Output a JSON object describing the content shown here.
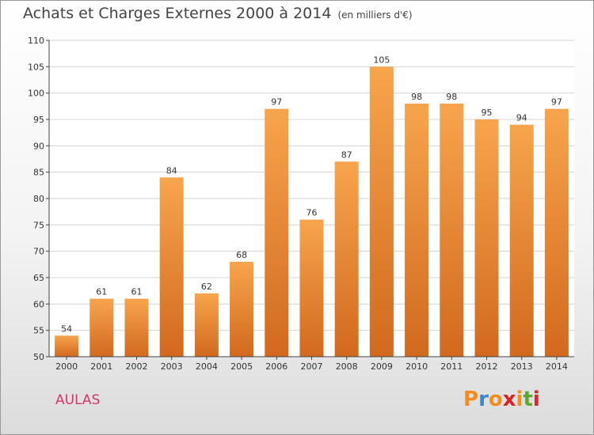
{
  "header": {
    "title": "Achats et Charges Externes 2000 à 2014",
    "unit": "(en milliers d'€)"
  },
  "footer": {
    "commune": "AULAS",
    "logo_letters": [
      "P",
      "r",
      "o",
      "x",
      "i",
      "t",
      "i"
    ],
    "logo_colors": [
      "#f28c1e",
      "#3a86c8",
      "#f28c1e",
      "#d8232a",
      "#f28c1e",
      "#5aa832",
      "#d8232a"
    ]
  },
  "colors": {
    "bar_top": "#f7a54c",
    "bar_bottom": "#d2691e",
    "grid": "#d3d3d3",
    "axis": "#444444",
    "label": "#333333"
  },
  "chart_data": {
    "type": "bar",
    "title": "Achats et Charges Externes 2000 à 2014",
    "subtitle": "(en milliers d'€)",
    "xlabel": "",
    "ylabel": "",
    "categories": [
      "2000",
      "2001",
      "2002",
      "2003",
      "2004",
      "2005",
      "2006",
      "2007",
      "2008",
      "2009",
      "2010",
      "2011",
      "2012",
      "2013",
      "2014"
    ],
    "values": [
      54,
      61,
      61,
      84,
      62,
      68,
      97,
      76,
      87,
      105,
      98,
      98,
      95,
      94,
      97
    ],
    "ylim": [
      50,
      110
    ],
    "yticks": [
      50,
      55,
      60,
      65,
      70,
      75,
      80,
      85,
      90,
      95,
      100,
      105,
      110
    ],
    "grid": true,
    "legend": "none"
  }
}
